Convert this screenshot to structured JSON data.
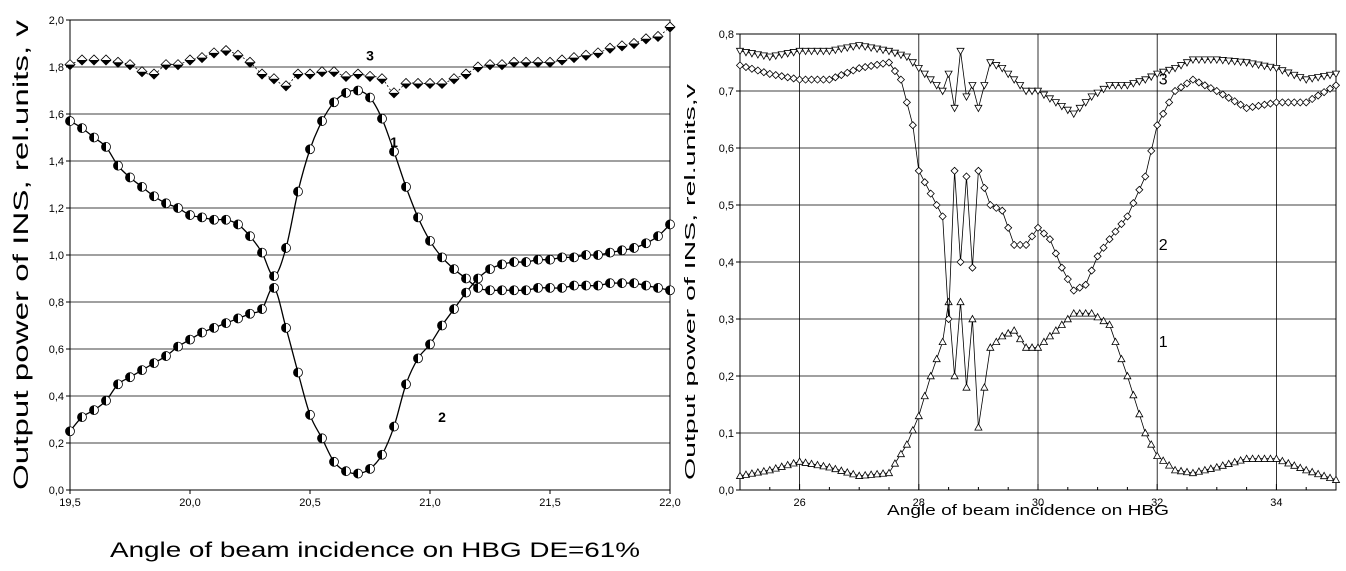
{
  "chart_data": [
    {
      "type": "line",
      "xlabel": "Angle of beam incidence on HBG  DE=61%",
      "ylabel": "Output power of INS, rel.units, v",
      "xlim": [
        19.5,
        22.0
      ],
      "ylim": [
        0.0,
        2.0
      ],
      "xticks": [
        "19,5",
        "20,0",
        "20,5",
        "21,0",
        "21,5",
        "22,0"
      ],
      "yticks": [
        "0,0",
        "0,2",
        "0,4",
        "0,6",
        "0,8",
        "1,0",
        "1,2",
        "1,4",
        "1,6",
        "1,8",
        "2,0"
      ],
      "grid": "horizontal",
      "series": [
        {
          "name": "1",
          "marker": "half-filled-circle",
          "x": [
            19.5,
            19.55,
            19.6,
            19.65,
            19.7,
            19.75,
            19.8,
            19.85,
            19.9,
            19.95,
            20.0,
            20.05,
            20.1,
            20.15,
            20.2,
            20.25,
            20.3,
            20.35,
            20.4,
            20.45,
            20.5,
            20.55,
            20.6,
            20.65,
            20.7,
            20.75,
            20.8,
            20.85,
            20.9,
            20.95,
            21.0,
            21.05,
            21.1,
            21.15,
            21.2,
            21.25,
            21.3,
            21.35,
            21.4,
            21.45,
            21.5,
            21.55,
            21.6,
            21.65,
            21.7,
            21.75,
            21.8,
            21.85,
            21.9,
            21.95,
            22.0
          ],
          "y": [
            1.57,
            1.54,
            1.5,
            1.46,
            1.38,
            1.33,
            1.29,
            1.25,
            1.22,
            1.2,
            1.17,
            1.16,
            1.15,
            1.15,
            1.13,
            1.08,
            1.01,
            0.91,
            1.03,
            1.27,
            1.45,
            1.57,
            1.65,
            1.69,
            1.7,
            1.67,
            1.58,
            1.44,
            1.29,
            1.16,
            1.06,
            0.99,
            0.94,
            0.9,
            0.86,
            0.85,
            0.85,
            0.85,
            0.85,
            0.86,
            0.86,
            0.86,
            0.87,
            0.87,
            0.87,
            0.88,
            0.88,
            0.88,
            0.87,
            0.86,
            0.85
          ]
        },
        {
          "name": "2",
          "marker": "half-filled-circle",
          "x": [
            19.5,
            19.55,
            19.6,
            19.65,
            19.7,
            19.75,
            19.8,
            19.85,
            19.9,
            19.95,
            20.0,
            20.05,
            20.1,
            20.15,
            20.2,
            20.25,
            20.3,
            20.35,
            20.4,
            20.45,
            20.5,
            20.55,
            20.6,
            20.65,
            20.7,
            20.75,
            20.8,
            20.85,
            20.9,
            20.95,
            21.0,
            21.05,
            21.1,
            21.15,
            21.2,
            21.25,
            21.3,
            21.35,
            21.4,
            21.45,
            21.5,
            21.55,
            21.6,
            21.65,
            21.7,
            21.75,
            21.8,
            21.85,
            21.9,
            21.95,
            22.0
          ],
          "y": [
            0.25,
            0.31,
            0.34,
            0.38,
            0.45,
            0.48,
            0.51,
            0.54,
            0.57,
            0.61,
            0.64,
            0.67,
            0.69,
            0.71,
            0.73,
            0.75,
            0.77,
            0.86,
            0.69,
            0.5,
            0.32,
            0.22,
            0.12,
            0.08,
            0.07,
            0.09,
            0.15,
            0.27,
            0.45,
            0.56,
            0.62,
            0.7,
            0.77,
            0.84,
            0.9,
            0.94,
            0.96,
            0.97,
            0.97,
            0.98,
            0.98,
            0.99,
            0.99,
            1.0,
            1.0,
            1.01,
            1.02,
            1.03,
            1.05,
            1.08,
            1.13
          ]
        },
        {
          "name": "3",
          "marker": "half-filled-diamond",
          "x": [
            19.5,
            19.55,
            19.6,
            19.65,
            19.7,
            19.75,
            19.8,
            19.85,
            19.9,
            19.95,
            20.0,
            20.05,
            20.1,
            20.15,
            20.2,
            20.25,
            20.3,
            20.35,
            20.4,
            20.45,
            20.5,
            20.55,
            20.6,
            20.65,
            20.7,
            20.75,
            20.8,
            20.85,
            20.9,
            20.95,
            21.0,
            21.05,
            21.1,
            21.15,
            21.2,
            21.25,
            21.3,
            21.35,
            21.4,
            21.45,
            21.5,
            21.55,
            21.6,
            21.65,
            21.7,
            21.75,
            21.8,
            21.85,
            21.9,
            21.95,
            22.0
          ],
          "y": [
            1.81,
            1.83,
            1.83,
            1.83,
            1.82,
            1.81,
            1.78,
            1.77,
            1.81,
            1.81,
            1.83,
            1.84,
            1.86,
            1.87,
            1.85,
            1.82,
            1.77,
            1.75,
            1.72,
            1.77,
            1.77,
            1.78,
            1.78,
            1.76,
            1.77,
            1.76,
            1.75,
            1.69,
            1.73,
            1.73,
            1.73,
            1.73,
            1.75,
            1.77,
            1.8,
            1.81,
            1.81,
            1.82,
            1.82,
            1.82,
            1.82,
            1.83,
            1.84,
            1.85,
            1.86,
            1.88,
            1.89,
            1.9,
            1.92,
            1.93,
            1.97
          ]
        }
      ],
      "curve_labels": [
        "1",
        "2",
        "3"
      ]
    },
    {
      "type": "line",
      "xlabel": "Angle of beam incidence on HBG",
      "ylabel": "Output power of INS, rel.units,v",
      "xlim": [
        25,
        35
      ],
      "ylim": [
        0.0,
        0.8
      ],
      "xticks": [
        "26",
        "28",
        "30",
        "32",
        "34"
      ],
      "yticks": [
        "0,0",
        "0,1",
        "0,2",
        "0,3",
        "0,4",
        "0,5",
        "0,6",
        "0,7",
        "0,8"
      ],
      "grid": "both",
      "series": [
        {
          "name": "1",
          "marker": "triangle-up",
          "x": [
            25.0,
            25.5,
            26.0,
            26.5,
            27.0,
            27.5,
            27.8,
            28.0,
            28.2,
            28.4,
            28.5,
            28.6,
            28.7,
            28.8,
            28.9,
            29.0,
            29.2,
            29.4,
            29.6,
            29.8,
            30.0,
            30.3,
            30.6,
            30.9,
            31.2,
            31.5,
            31.8,
            32.0,
            32.3,
            32.6,
            33.0,
            33.5,
            34.0,
            34.5,
            35.0
          ],
          "y": [
            0.025,
            0.035,
            0.05,
            0.04,
            0.025,
            0.03,
            0.08,
            0.13,
            0.2,
            0.26,
            0.33,
            0.2,
            0.33,
            0.18,
            0.3,
            0.11,
            0.25,
            0.27,
            0.28,
            0.25,
            0.25,
            0.28,
            0.31,
            0.31,
            0.29,
            0.2,
            0.1,
            0.06,
            0.035,
            0.03,
            0.04,
            0.055,
            0.055,
            0.035,
            0.018
          ]
        },
        {
          "name": "2",
          "marker": "diamond",
          "x": [
            25.0,
            25.5,
            26.0,
            26.5,
            27.0,
            27.5,
            27.7,
            27.9,
            28.0,
            28.2,
            28.4,
            28.5,
            28.6,
            28.7,
            28.8,
            28.9,
            29.0,
            29.2,
            29.4,
            29.6,
            29.8,
            30.0,
            30.2,
            30.4,
            30.6,
            30.8,
            31.0,
            31.2,
            31.5,
            31.8,
            32.0,
            32.3,
            32.6,
            33.0,
            33.5,
            34.0,
            34.5,
            35.0
          ],
          "y": [
            0.745,
            0.73,
            0.72,
            0.72,
            0.74,
            0.75,
            0.72,
            0.64,
            0.56,
            0.52,
            0.48,
            0.3,
            0.56,
            0.4,
            0.55,
            0.39,
            0.56,
            0.5,
            0.49,
            0.43,
            0.43,
            0.46,
            0.44,
            0.39,
            0.35,
            0.36,
            0.41,
            0.44,
            0.48,
            0.55,
            0.64,
            0.7,
            0.72,
            0.7,
            0.67,
            0.68,
            0.68,
            0.71
          ]
        },
        {
          "name": "3",
          "marker": "triangle-down",
          "x": [
            25.0,
            25.5,
            26.0,
            26.5,
            27.0,
            27.5,
            27.8,
            28.0,
            28.2,
            28.4,
            28.5,
            28.6,
            28.7,
            28.8,
            28.9,
            29.0,
            29.2,
            29.4,
            29.6,
            29.8,
            30.0,
            30.3,
            30.6,
            30.9,
            31.2,
            31.5,
            31.8,
            32.0,
            32.3,
            32.6,
            33.0,
            33.5,
            34.0,
            34.5,
            35.0
          ],
          "y": [
            0.77,
            0.76,
            0.77,
            0.77,
            0.78,
            0.77,
            0.76,
            0.74,
            0.72,
            0.7,
            0.73,
            0.67,
            0.77,
            0.69,
            0.71,
            0.67,
            0.75,
            0.74,
            0.72,
            0.7,
            0.7,
            0.68,
            0.66,
            0.69,
            0.71,
            0.71,
            0.72,
            0.73,
            0.74,
            0.755,
            0.755,
            0.75,
            0.74,
            0.72,
            0.73
          ]
        }
      ],
      "curve_labels": [
        "1",
        "2",
        "3"
      ]
    }
  ]
}
